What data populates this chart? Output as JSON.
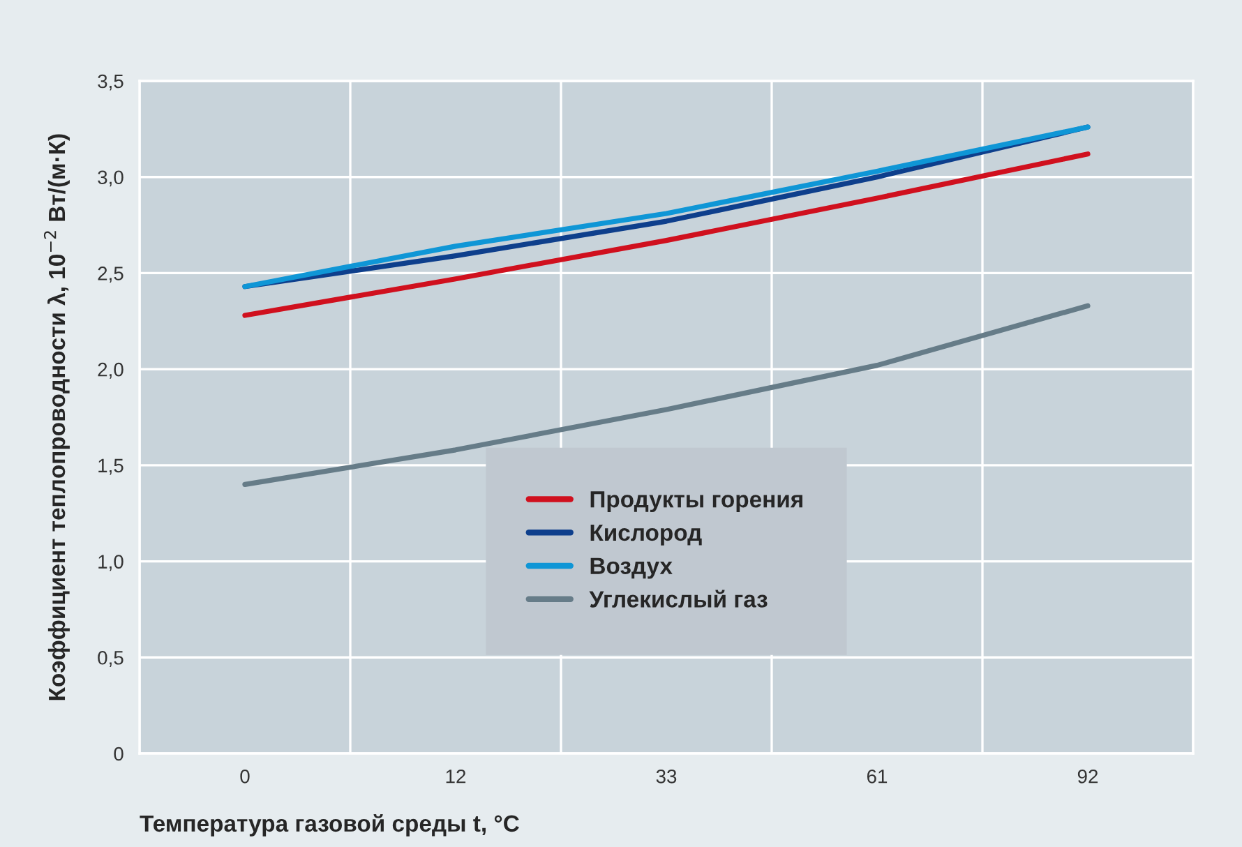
{
  "chart_data": {
    "type": "line",
    "xlabel": "Температура газовой среды t, °C",
    "ylabel": "Коэффициент теплопроводности λ, 10$^{−2}$ Вт/(м·К)",
    "categories": [
      "0",
      "12",
      "33",
      "61",
      "92"
    ],
    "series": [
      {
        "name": "Продукты горения",
        "color": "#d0101e",
        "values": [
          2.28,
          2.47,
          2.67,
          2.89,
          3.12
        ]
      },
      {
        "name": "Кислород",
        "color": "#0e3f8c",
        "values": [
          2.43,
          2.59,
          2.77,
          3.0,
          3.26
        ]
      },
      {
        "name": "Воздух",
        "color": "#0f96d6",
        "values": [
          2.43,
          2.64,
          2.81,
          3.03,
          3.26
        ]
      },
      {
        "name": "Углекислый газ",
        "color": "#667c88",
        "values": [
          1.4,
          1.58,
          1.79,
          2.02,
          2.33
        ]
      }
    ],
    "ylim": [
      0,
      3.5
    ],
    "yticks": [
      0,
      {
        "value": 0.5,
        "label": "0,5"
      },
      {
        "value": 1.0,
        "label": "1,0"
      },
      {
        "value": 1.5,
        "label": "1,5"
      },
      {
        "value": 2.0,
        "label": "2,0"
      },
      {
        "value": 2.5,
        "label": "2,5"
      },
      {
        "value": 3.0,
        "label": "3,0"
      },
      {
        "value": 3.5,
        "label": "3,5"
      }
    ],
    "grid": true,
    "legend": "bottom",
    "marker": "none",
    "line_style": "solid"
  }
}
